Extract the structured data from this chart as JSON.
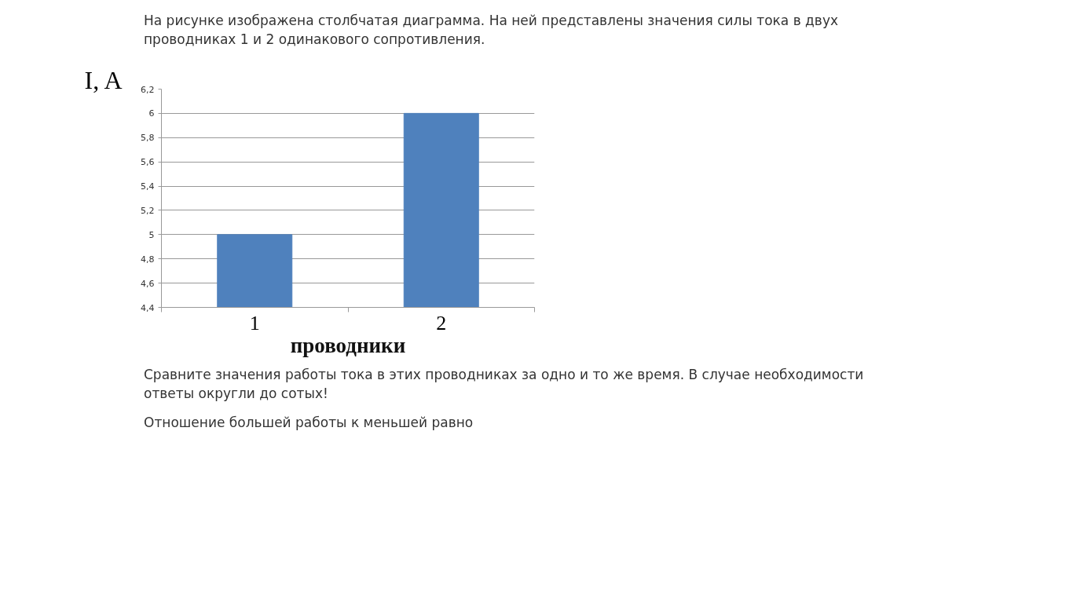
{
  "chart_data": {
    "type": "bar",
    "title": "На рисунке изображена столбчатая диаграмма. На ней представлены значения силы тока в двух проводниках 1 и 2 одинакового сопротивления.",
    "ylabel": "I, A",
    "xlabel": "проводники",
    "categories": [
      "1",
      "2"
    ],
    "values": [
      5,
      6
    ],
    "color": "#4f81bd",
    "ylim": [
      4.4,
      6.2
    ],
    "yticks": [
      {
        "value": 4.4,
        "label": "4,4"
      },
      {
        "value": 4.6,
        "label": "4,6"
      },
      {
        "value": 4.8,
        "label": "4,8"
      },
      5,
      {
        "value": 5.2,
        "label": "5,2"
      },
      {
        "value": 5.4,
        "label": "5,4"
      },
      {
        "value": 5.6,
        "label": "5,6"
      },
      {
        "value": 5.8,
        "label": "5,8"
      },
      6,
      {
        "value": 6.2,
        "label": "6,2"
      }
    ],
    "grid": "y",
    "annotations": [
      "Сравните значения работы тока в этих проводниках за одно и то же время. В случае необходимости ответы округли до сотых!",
      "Отношение большей работы к меньшей равно"
    ]
  }
}
